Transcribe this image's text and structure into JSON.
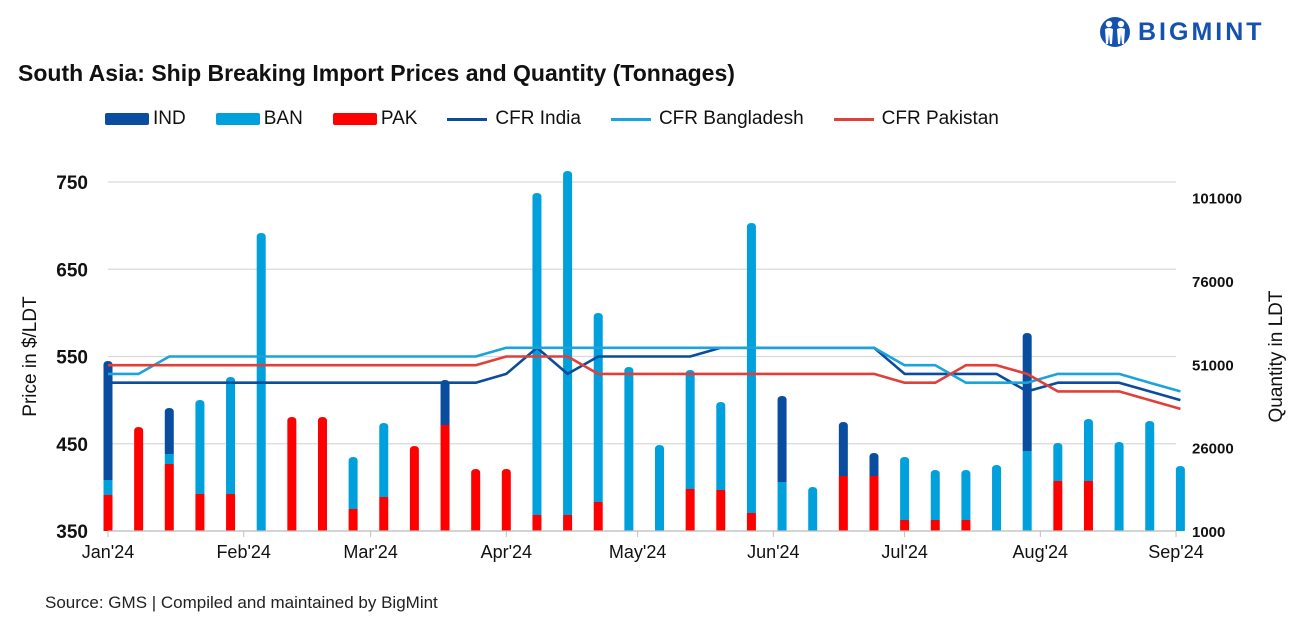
{
  "title": "South Asia: Ship Breaking Import Prices and Quantity (Tonnages)",
  "source": "Source: GMS | Compiled and maintained by BigMint",
  "logo": {
    "text": "BIGMINT",
    "icon": "bigmint-people-icon",
    "color": "#1552b0"
  },
  "chart_data": {
    "type": "bar+line",
    "title": "South Asia: Ship Breaking Import Prices and Quantity (Tonnages)",
    "ylabel_left": "Price in $/LDT",
    "ylabel_right": "Quantity in LDT",
    "ylim_left": [
      350,
      750
    ],
    "ylim_right": [
      1000,
      105700
    ],
    "yticks_left": [
      "750",
      "650",
      "550",
      "450",
      "350"
    ],
    "yticks_left_values": [
      750,
      650,
      550,
      450,
      350
    ],
    "yticks_right": [
      "101000",
      "76000",
      "51000",
      "26000",
      "1000"
    ],
    "yticks_right_values": [
      101000,
      76000,
      51000,
      26000,
      1000
    ],
    "xticks": [
      "Jan'24",
      "Feb'24",
      "Mar'24",
      "Apr'24",
      "May'24",
      "Jun'24",
      "Jul'24",
      "Aug'24",
      "Sep'24"
    ],
    "xtick_dates": [
      "2024-01-01",
      "2024-02-01",
      "2024-03-01",
      "2024-04-01",
      "2024-05-01",
      "2024-06-01",
      "2024-07-01",
      "2024-08-01",
      "2024-09-01"
    ],
    "grid": true,
    "legend_position": "top",
    "x": [
      "2024-01-01",
      "2024-01-08",
      "2024-01-15",
      "2024-01-22",
      "2024-01-29",
      "2024-02-05",
      "2024-02-12",
      "2024-02-19",
      "2024-02-26",
      "2024-03-04",
      "2024-03-11",
      "2024-03-18",
      "2024-03-25",
      "2024-04-01",
      "2024-04-08",
      "2024-04-15",
      "2024-04-22",
      "2024-04-29",
      "2024-05-06",
      "2024-05-13",
      "2024-05-20",
      "2024-05-27",
      "2024-06-03",
      "2024-06-10",
      "2024-06-17",
      "2024-06-24",
      "2024-07-01",
      "2024-07-08",
      "2024-07-15",
      "2024-07-22",
      "2024-07-29",
      "2024-08-05",
      "2024-08-12",
      "2024-08-19",
      "2024-08-26",
      "2024-09-02"
    ],
    "bar_series": [
      {
        "name": "PAK",
        "color": "#ff0000",
        "axis": "right",
        "values": [
          10800,
          31200,
          20100,
          11100,
          11100,
          0,
          34200,
          34200,
          6600,
          10200,
          25500,
          31800,
          18600,
          18600,
          4800,
          4800,
          8700,
          0,
          0,
          12600,
          12300,
          5400,
          0,
          0,
          16500,
          16500,
          3300,
          3300,
          3300,
          0,
          0,
          15000,
          15000,
          0,
          0,
          0
        ]
      },
      {
        "name": "BAN",
        "color": "#00a0dd",
        "axis": "right",
        "values": [
          4500,
          0,
          3000,
          28200,
          35100,
          89400,
          0,
          0,
          15600,
          22200,
          0,
          0,
          0,
          0,
          96600,
          103200,
          56700,
          49200,
          25800,
          35700,
          26400,
          87000,
          14700,
          13200,
          0,
          0,
          18900,
          15000,
          15000,
          19800,
          24000,
          11400,
          18600,
          26700,
          33000,
          19500
        ]
      },
      {
        "name": "IND",
        "color": "#0a4c9e",
        "axis": "right",
        "values": [
          35700,
          0,
          13800,
          0,
          0,
          0,
          0,
          0,
          0,
          0,
          0,
          13500,
          0,
          0,
          0,
          0,
          0,
          0,
          0,
          0,
          0,
          0,
          25800,
          0,
          16200,
          6900,
          0,
          0,
          0,
          0,
          35400,
          0,
          0,
          0,
          0,
          0
        ]
      }
    ],
    "line_series": [
      {
        "name": "CFR India",
        "color": "#0b4c9c",
        "axis": "left",
        "values": [
          520,
          520,
          520,
          520,
          520,
          520,
          520,
          520,
          520,
          520,
          520,
          520,
          520,
          530,
          560,
          530,
          550,
          550,
          550,
          550,
          560,
          560,
          560,
          560,
          560,
          560,
          530,
          530,
          530,
          530,
          510,
          520,
          520,
          520,
          510,
          500
        ]
      },
      {
        "name": "CFR Bangladesh",
        "color": "#1ba3db",
        "axis": "left",
        "values": [
          530,
          530,
          550,
          550,
          550,
          550,
          550,
          550,
          550,
          550,
          550,
          550,
          550,
          560,
          560,
          560,
          560,
          560,
          560,
          560,
          560,
          560,
          560,
          560,
          560,
          560,
          540,
          540,
          520,
          520,
          520,
          530,
          530,
          530,
          520,
          510
        ]
      },
      {
        "name": "CFR Pakistan",
        "color": "#e0403a",
        "axis": "left",
        "values": [
          540,
          540,
          540,
          540,
          540,
          540,
          540,
          540,
          540,
          540,
          540,
          540,
          540,
          550,
          550,
          550,
          530,
          530,
          530,
          530,
          530,
          530,
          530,
          530,
          530,
          530,
          520,
          520,
          540,
          540,
          530,
          510,
          510,
          510,
          500,
          490
        ]
      }
    ],
    "legend": [
      {
        "label": "IND",
        "kind": "bar",
        "color": "#0a4c9e"
      },
      {
        "label": "BAN",
        "kind": "bar",
        "color": "#00a0dd"
      },
      {
        "label": "PAK",
        "kind": "bar",
        "color": "#ff0000"
      },
      {
        "label": "CFR India",
        "kind": "line",
        "color": "#0b4c9c"
      },
      {
        "label": "CFR Bangladesh",
        "kind": "line",
        "color": "#1ba3db"
      },
      {
        "label": "CFR Pakistan",
        "kind": "line",
        "color": "#e0403a"
      }
    ]
  }
}
